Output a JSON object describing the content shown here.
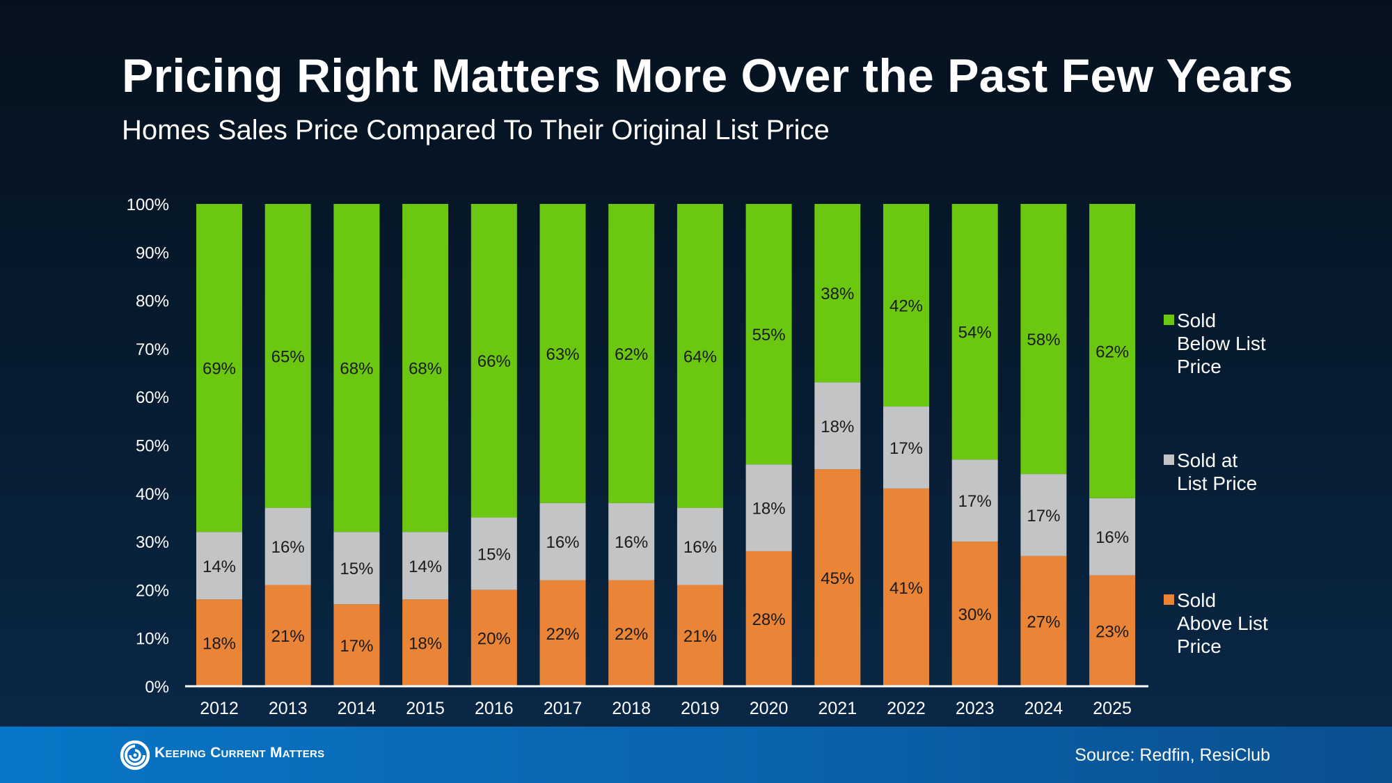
{
  "title": "Pricing Right Matters More Over the Past Few Years",
  "subtitle": "Homes Sales Price Compared To Their Original List Price",
  "source": "Source: Redfin, ResiClub",
  "brand": {
    "name": "Keeping Current Matters",
    "icon": "kcm-swirl-logo-icon"
  },
  "colors": {
    "below": "#6bc70f",
    "at": "#c3c4c5",
    "above": "#ea8537",
    "background": "#071d33",
    "footer": "#0a6bb8"
  },
  "legend": [
    {
      "key": "below",
      "lines": [
        "Sold",
        "Below List",
        "Price"
      ]
    },
    {
      "key": "at",
      "lines": [
        "Sold at",
        "List Price"
      ]
    },
    {
      "key": "above",
      "lines": [
        "Sold",
        "Above List",
        "Price"
      ]
    }
  ],
  "chart_data": {
    "type": "bar",
    "stacked": true,
    "categories": [
      "2012",
      "2013",
      "2014",
      "2015",
      "2016",
      "2017",
      "2018",
      "2019",
      "2020",
      "2021",
      "2022",
      "2023",
      "2024",
      "2025"
    ],
    "series": [
      {
        "name": "Sold Above List Price",
        "key": "above",
        "values": [
          18,
          21,
          17,
          18,
          20,
          22,
          22,
          21,
          28,
          45,
          41,
          30,
          27,
          23
        ]
      },
      {
        "name": "Sold at List Price",
        "key": "at",
        "values": [
          14,
          16,
          15,
          14,
          15,
          16,
          16,
          16,
          18,
          18,
          17,
          17,
          17,
          16
        ]
      },
      {
        "name": "Sold Below List Price",
        "key": "below",
        "values": [
          69,
          65,
          68,
          68,
          66,
          63,
          62,
          64,
          55,
          38,
          42,
          54,
          58,
          62
        ]
      }
    ],
    "yticks": [
      "0%",
      "10%",
      "20%",
      "30%",
      "40%",
      "50%",
      "60%",
      "70%",
      "80%",
      "90%",
      "100%"
    ],
    "ylim": [
      0,
      100
    ],
    "grid": false,
    "legend_position": "right"
  }
}
